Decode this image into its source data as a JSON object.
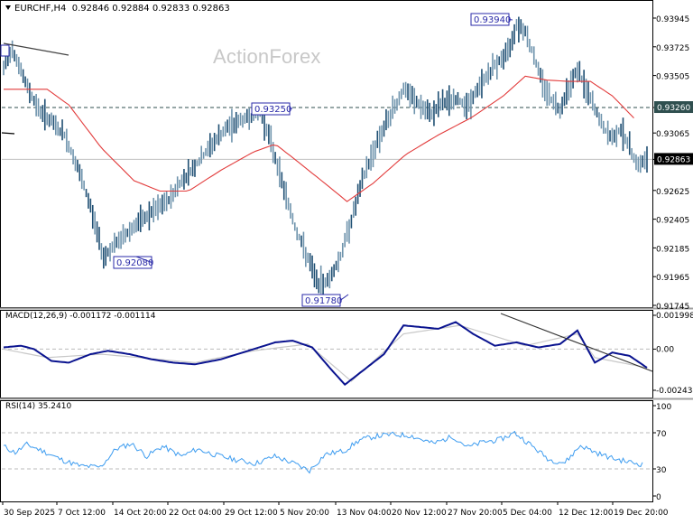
{
  "header": {
    "symbol_label": "EURCHF,H4",
    "ohlc": "0.92846 0.92884 0.92833 0.92863",
    "menu_arrow": "triangle-down-icon"
  },
  "watermark": "ActionForex",
  "colors": {
    "bars": "#6f94ad",
    "bars_dark": "#1f4f73",
    "ma": "#e23b3b",
    "macd_main": "#0a138f",
    "macd_signal": "#c8c8c8",
    "rsi": "#3d9cf0",
    "grid_dash": "#bbbbbb",
    "axis": "#000000",
    "label_border": "#2a2aa8",
    "price_tag_bg": "#000000",
    "level_tag_bg": "#2f4f4f",
    "trendline": "#000000"
  },
  "chart_data": [
    {
      "type": "bar",
      "title": "EURCHF,H4 0.92846 0.92884 0.92833 0.92863",
      "subtype": "ohlc_bars_with_moving_average",
      "ylim": [
        0.91745,
        0.93945
      ],
      "yticks": [
        "0.93945",
        "0.93725",
        "0.93505",
        "0.93260",
        "0.93065",
        "0.92863",
        "0.92625",
        "0.92405",
        "0.92185",
        "0.91965",
        "0.91745"
      ],
      "current_price": "0.92863",
      "horizontal_level": "0.93260",
      "x_ticks": [
        "30 Sep 2025",
        "7 Oct 12:00",
        "14 Oct 20:00",
        "22 Oct 04:00",
        "29 Oct 12:00",
        "5 Nov 20:00",
        "13 Nov 04:00",
        "20 Nov 12:00",
        "27 Nov 20:00",
        "5 Dec 04:00",
        "12 Dec 12:00",
        "19 Dec 20:00"
      ],
      "annotations": [
        {
          "label": "0.92080",
          "type": "swing-low",
          "date_approx": "15 Oct"
        },
        {
          "label": "0.93250",
          "type": "swing-high",
          "date_approx": "5 Nov"
        },
        {
          "label": "0.91780",
          "type": "swing-low",
          "date_approx": "13 Nov"
        },
        {
          "label": "0.93940",
          "type": "swing-high",
          "date_approx": "5 Dec"
        }
      ],
      "price_path_waypoints": [
        [
          0,
          0.9355
        ],
        [
          4,
          0.9372
        ],
        [
          10,
          0.9345
        ],
        [
          16,
          0.9325
        ],
        [
          22,
          0.9315
        ],
        [
          28,
          0.9305
        ],
        [
          34,
          0.928
        ],
        [
          40,
          0.925
        ],
        [
          46,
          0.9212
        ],
        [
          52,
          0.9222
        ],
        [
          60,
          0.9235
        ],
        [
          68,
          0.9245
        ],
        [
          76,
          0.9255
        ],
        [
          82,
          0.927
        ],
        [
          90,
          0.9285
        ],
        [
          96,
          0.9298
        ],
        [
          104,
          0.9312
        ],
        [
          112,
          0.9318
        ],
        [
          118,
          0.9322
        ],
        [
          122,
          0.9305
        ],
        [
          128,
          0.927
        ],
        [
          134,
          0.9235
        ],
        [
          140,
          0.921
        ],
        [
          145,
          0.919
        ],
        [
          150,
          0.9195
        ],
        [
          155,
          0.9212
        ],
        [
          160,
          0.924
        ],
        [
          166,
          0.9275
        ],
        [
          172,
          0.93
        ],
        [
          178,
          0.932
        ],
        [
          184,
          0.934
        ],
        [
          190,
          0.933
        ],
        [
          196,
          0.932
        ],
        [
          202,
          0.933
        ],
        [
          208,
          0.9332
        ],
        [
          214,
          0.9328
        ],
        [
          220,
          0.9345
        ],
        [
          226,
          0.9358
        ],
        [
          232,
          0.9368
        ],
        [
          236,
          0.939
        ],
        [
          240,
          0.9385
        ],
        [
          244,
          0.9365
        ],
        [
          248,
          0.9345
        ],
        [
          252,
          0.9332
        ],
        [
          256,
          0.9325
        ],
        [
          260,
          0.9342
        ],
        [
          264,
          0.9355
        ],
        [
          268,
          0.934
        ],
        [
          272,
          0.9325
        ],
        [
          276,
          0.931
        ],
        [
          280,
          0.9302
        ],
        [
          284,
          0.931
        ],
        [
          288,
          0.9295
        ],
        [
          292,
          0.9282
        ],
        [
          296,
          0.9286
        ]
      ],
      "moving_average_path": [
        [
          0,
          0.934
        ],
        [
          20,
          0.934
        ],
        [
          30,
          0.9328
        ],
        [
          45,
          0.9295
        ],
        [
          60,
          0.927
        ],
        [
          72,
          0.9262
        ],
        [
          85,
          0.9262
        ],
        [
          100,
          0.9278
        ],
        [
          115,
          0.9292
        ],
        [
          125,
          0.9298
        ],
        [
          135,
          0.9285
        ],
        [
          150,
          0.9265
        ],
        [
          158,
          0.9254
        ],
        [
          170,
          0.9268
        ],
        [
          185,
          0.929
        ],
        [
          200,
          0.9305
        ],
        [
          215,
          0.9318
        ],
        [
          230,
          0.9335
        ],
        [
          240,
          0.935
        ],
        [
          250,
          0.9347
        ],
        [
          260,
          0.9346
        ],
        [
          270,
          0.9346
        ],
        [
          280,
          0.9335
        ],
        [
          290,
          0.9318
        ]
      ]
    },
    {
      "type": "line",
      "title": "MACD(12,26,9) -0.001172 -0.001114",
      "ylim": [
        -0.002434,
        0.001998
      ],
      "yticks": [
        "0.001998",
        "0.00",
        "-0.002434"
      ],
      "series": [
        {
          "name": "MACD main",
          "values_path": [
            [
              0,
              0.0001
            ],
            [
              8,
              0.0002
            ],
            [
              14,
              0.0
            ],
            [
              22,
              -0.0007
            ],
            [
              30,
              -0.0008
            ],
            [
              40,
              -0.0003
            ],
            [
              48,
              -0.0001
            ],
            [
              58,
              -0.0003
            ],
            [
              68,
              -0.0006
            ],
            [
              78,
              -0.0008
            ],
            [
              88,
              -0.0009
            ],
            [
              100,
              -0.0006
            ],
            [
              115,
              0.0
            ],
            [
              125,
              0.0004
            ],
            [
              133,
              0.0005
            ],
            [
              142,
              0.0001
            ],
            [
              150,
              -0.0011
            ],
            [
              157,
              -0.0021
            ],
            [
              165,
              -0.0013
            ],
            [
              175,
              -0.0003
            ],
            [
              184,
              0.0014
            ],
            [
              192,
              0.0013
            ],
            [
              200,
              0.0012
            ],
            [
              208,
              0.0016
            ],
            [
              216,
              0.0009
            ],
            [
              226,
              0.0002
            ],
            [
              236,
              0.0004
            ],
            [
              246,
              0.0001
            ],
            [
              256,
              0.0003
            ],
            [
              264,
              0.0011
            ],
            [
              272,
              -0.0008
            ],
            [
              280,
              -0.0002
            ],
            [
              288,
              -0.0004
            ],
            [
              296,
              -0.0011
            ]
          ]
        },
        {
          "name": "MACD signal",
          "values_path": [
            [
              0,
              0.0
            ],
            [
              20,
              -0.0005
            ],
            [
              45,
              -0.0003
            ],
            [
              88,
              -0.0008
            ],
            [
              115,
              -0.0001
            ],
            [
              140,
              0.0003
            ],
            [
              160,
              -0.0019
            ],
            [
              184,
              0.0009
            ],
            [
              210,
              0.0014
            ],
            [
              240,
              0.0002
            ],
            [
              264,
              0.0009
            ],
            [
              272,
              -0.0005
            ],
            [
              296,
              -0.0011
            ]
          ]
        }
      ],
      "annotations": [
        "descending trendline from 5 Dec high"
      ]
    },
    {
      "type": "line",
      "title": "RSI(14) 35.2410",
      "ylim": [
        0,
        100
      ],
      "yticks": [
        "100",
        "70",
        "30",
        "0"
      ],
      "levels": [
        70,
        30
      ],
      "series": [
        {
          "name": "RSI(14)",
          "values_path": [
            [
              0,
              55
            ],
            [
              6,
              48
            ],
            [
              12,
              57
            ],
            [
              20,
              50
            ],
            [
              30,
              40
            ],
            [
              40,
              33
            ],
            [
              50,
              32
            ],
            [
              58,
              52
            ],
            [
              66,
              58
            ],
            [
              74,
              44
            ],
            [
              82,
              55
            ],
            [
              92,
              44
            ],
            [
              100,
              52
            ],
            [
              110,
              45
            ],
            [
              120,
              40
            ],
            [
              130,
              36
            ],
            [
              140,
              44
            ],
            [
              150,
              36
            ],
            [
              158,
              28
            ],
            [
              166,
              46
            ],
            [
              176,
              50
            ],
            [
              184,
              62
            ],
            [
              192,
              66
            ],
            [
              200,
              68
            ],
            [
              210,
              67
            ],
            [
              222,
              58
            ],
            [
              232,
              66
            ],
            [
              240,
              54
            ],
            [
              248,
              60
            ],
            [
              256,
              62
            ],
            [
              264,
              70
            ],
            [
              272,
              57
            ],
            [
              282,
              40
            ],
            [
              290,
              37
            ],
            [
              298,
              56
            ],
            [
              306,
              48
            ],
            [
              314,
              42
            ],
            [
              322,
              38
            ],
            [
              330,
              35
            ]
          ]
        }
      ]
    }
  ],
  "axes": {
    "price_labels": [
      "0.93945",
      "0.93725",
      "0.93505",
      "0.93260",
      "0.93065",
      "0.92863",
      "0.92625",
      "0.92405",
      "0.92185",
      "0.91965",
      "0.91745"
    ],
    "macd_labels": [
      "0.001998",
      "0.00",
      "-0.002434"
    ],
    "rsi_labels": [
      "100",
      "70",
      "30",
      "0"
    ],
    "time_labels": [
      "30 Sep 2025",
      "7 Oct 12:00",
      "14 Oct 20:00",
      "22 Oct 04:00",
      "29 Oct 12:00",
      "5 Nov 20:00",
      "13 Nov 04:00",
      "20 Nov 12:00",
      "27 Nov 20:00",
      "5 Dec 04:00",
      "12 Dec 12:00",
      "19 Dec 20:00"
    ]
  },
  "indicators": {
    "macd_title": "MACD(12,26,9) -0.001172 -0.001114",
    "rsi_title": "RSI(14) 35.2410"
  }
}
